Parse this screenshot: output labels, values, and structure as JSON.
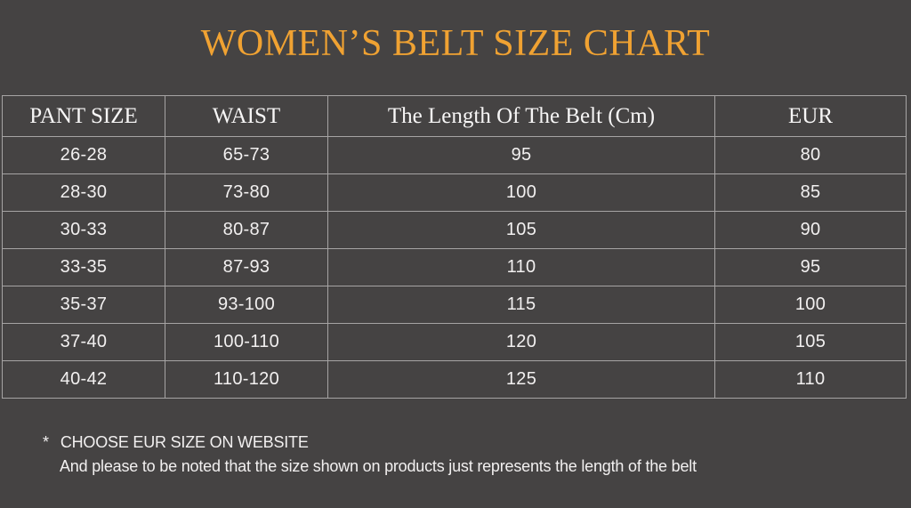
{
  "colors": {
    "background": "#454343",
    "title_accent": "#F0A232",
    "table_border": "#A6A4A4",
    "table_text": "#F2F0F0"
  },
  "chart_data": {
    "type": "table",
    "title": "WOMEN’S BELT SIZE CHART",
    "columns": [
      "PANT SIZE",
      "WAIST",
      "The Length Of The Belt (Cm)",
      "EUR"
    ],
    "rows": [
      [
        "26-28",
        "65-73",
        "95",
        "80"
      ],
      [
        "28-30",
        "73-80",
        "100",
        "85"
      ],
      [
        "30-33",
        "80-87",
        "105",
        "90"
      ],
      [
        "33-35",
        "87-93",
        "110",
        "95"
      ],
      [
        "35-37",
        "93-100",
        "115",
        "100"
      ],
      [
        "37-40",
        "100-110",
        "120",
        "105"
      ],
      [
        "40-42",
        "110-120",
        "125",
        "110"
      ]
    ],
    "grid": true,
    "footnotes": [
      "CHOOSE EUR SIZE ON WEBSITE",
      "And please to be noted that the size shown on products just represents the length of the belt"
    ]
  },
  "footnote": {
    "asterisk": "*",
    "line1": "CHOOSE EUR SIZE ON WEBSITE",
    "line2": "And please to be noted that the size shown on products just represents the length of the belt"
  }
}
